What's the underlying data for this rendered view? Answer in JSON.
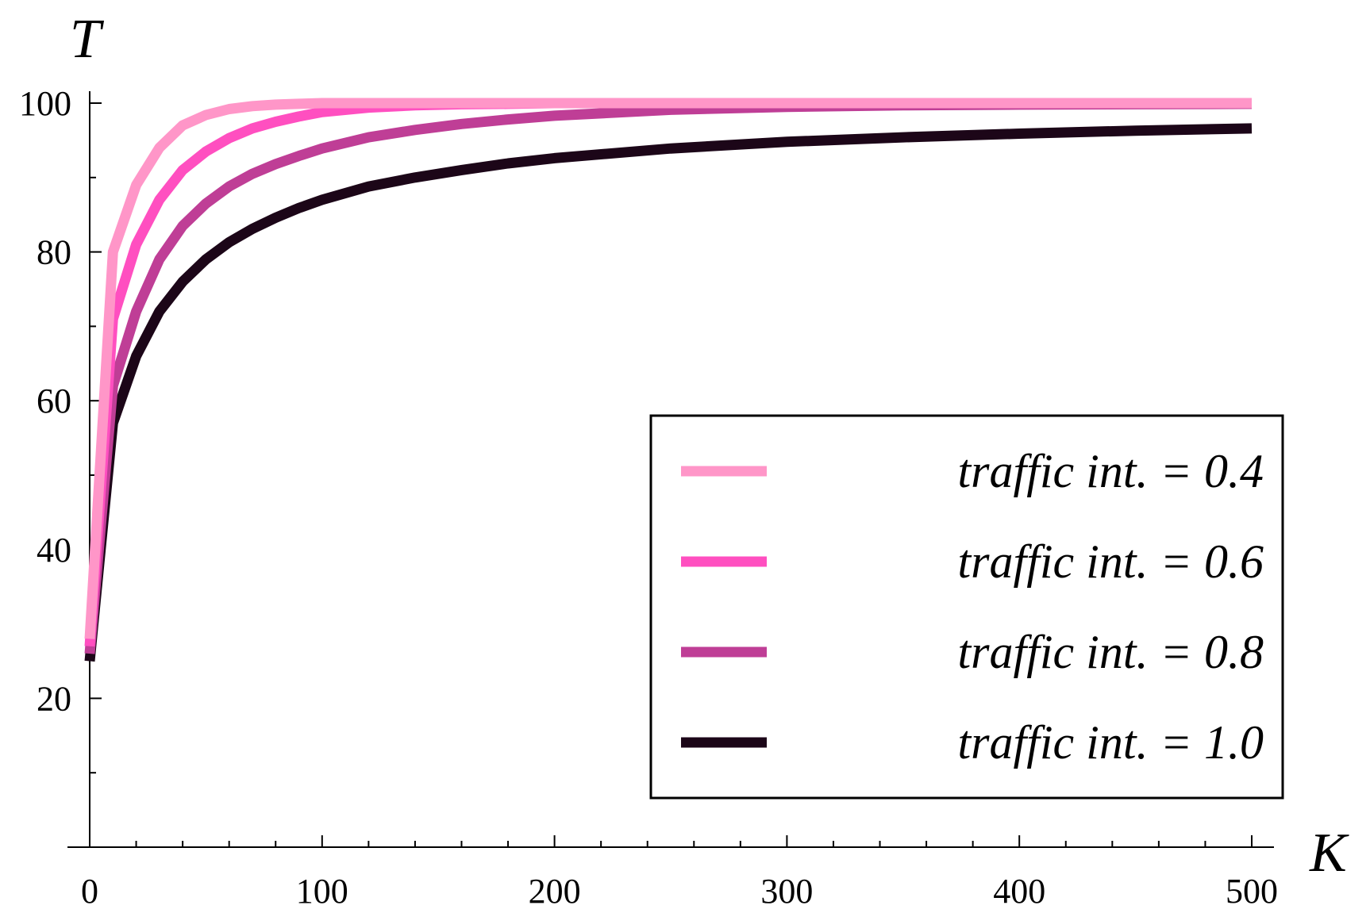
{
  "chart_data": {
    "type": "line",
    "title": "",
    "xlabel": "K",
    "ylabel": "T",
    "xlim": [
      0,
      500
    ],
    "ylim": [
      0,
      100
    ],
    "xticks": [
      0,
      100,
      200,
      300,
      400,
      500
    ],
    "yticks": [
      20,
      40,
      60,
      80,
      100
    ],
    "x_minor_step": 20,
    "y_minor_step": 10,
    "grid": false,
    "legend_position": "bottom-right",
    "x": [
      0,
      10,
      20,
      30,
      40,
      50,
      60,
      70,
      80,
      90,
      100,
      120,
      140,
      160,
      180,
      200,
      250,
      300,
      350,
      400,
      450,
      500
    ],
    "series": [
      {
        "name": "traffic int. = 0.4",
        "color": "#ff96c8",
        "values": [
          28,
          80,
          89,
          94,
          97,
          98.4,
          99.2,
          99.6,
          99.8,
          99.9,
          100,
          100,
          100,
          100,
          100,
          100,
          100,
          100,
          100,
          100,
          100,
          100
        ]
      },
      {
        "name": "traffic int. = 0.6",
        "color": "#ff4fc0",
        "values": [
          27,
          71,
          81,
          87,
          91,
          93.5,
          95.3,
          96.6,
          97.5,
          98.2,
          98.8,
          99.4,
          99.7,
          99.85,
          99.9,
          100,
          100,
          100,
          100,
          100,
          100,
          100
        ]
      },
      {
        "name": "traffic int. = 0.8",
        "color": "#bf3e96",
        "values": [
          26,
          62,
          72,
          79,
          83.5,
          86.5,
          88.8,
          90.5,
          91.8,
          92.9,
          93.9,
          95.4,
          96.4,
          97.2,
          97.8,
          98.3,
          99.1,
          99.5,
          99.7,
          99.8,
          99.85,
          99.9
        ]
      },
      {
        "name": "traffic int. = 1.0",
        "color": "#1c0618",
        "values": [
          25,
          57,
          66,
          72,
          76,
          79,
          81.3,
          83.1,
          84.6,
          85.9,
          87,
          88.8,
          90,
          91,
          91.9,
          92.6,
          93.9,
          94.8,
          95.4,
          95.9,
          96.3,
          96.6
        ]
      }
    ]
  }
}
